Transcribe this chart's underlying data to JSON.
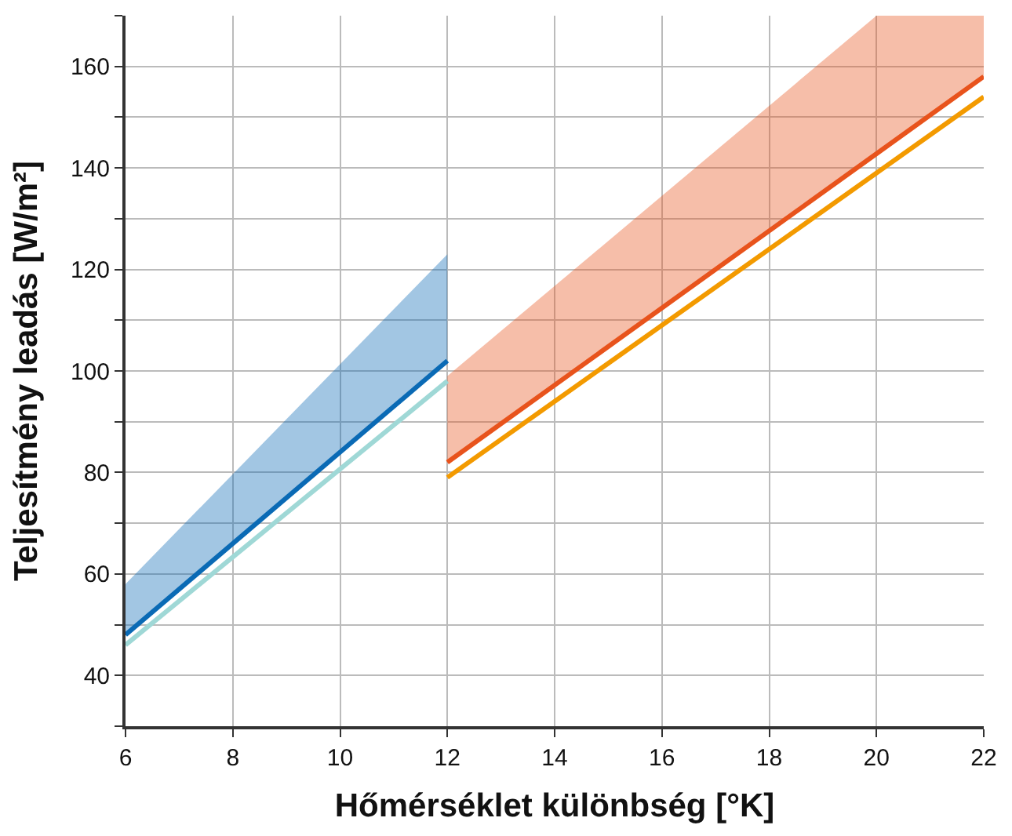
{
  "chart_data": {
    "type": "line",
    "xlabel": "Hőmérséklet különbség [°K]",
    "ylabel": "Teljesítmény leadás [W/m²]",
    "xlim": [
      6,
      22
    ],
    "xticks": [
      6,
      8,
      10,
      12,
      14,
      16,
      18,
      20,
      22
    ],
    "ylim": [
      30,
      170
    ],
    "yticks": [
      {
        "value": 30,
        "label": null
      },
      40,
      {
        "value": 50,
        "label": null
      },
      60,
      {
        "value": 70,
        "label": null
      },
      80,
      {
        "value": 90,
        "label": null
      },
      100,
      {
        "value": 110,
        "label": null
      },
      120,
      {
        "value": 130,
        "label": null
      },
      140,
      {
        "value": 150,
        "label": null
      },
      160,
      {
        "value": 170,
        "label": null
      }
    ],
    "grid": true,
    "marker": "none",
    "line_style": "solid",
    "series": [
      {
        "color": "#0a6ab5",
        "x": [
          6,
          12
        ],
        "values": [
          48,
          102
        ],
        "lower": [
          48,
          102
        ],
        "upper": [
          58,
          123
        ]
      },
      {
        "color": "#9fd8d6",
        "x": [
          6,
          12
        ],
        "values": [
          46,
          98
        ]
      },
      {
        "color": "#e8531c",
        "x": [
          12,
          20,
          22
        ],
        "values": [
          82,
          142.8,
          158
        ],
        "lower": [
          82,
          142.8,
          158
        ],
        "upper": [
          99,
          170,
          170
        ]
      },
      {
        "color": "#f39a00",
        "x": [
          12,
          22
        ],
        "values": [
          79,
          154
        ]
      }
    ]
  }
}
